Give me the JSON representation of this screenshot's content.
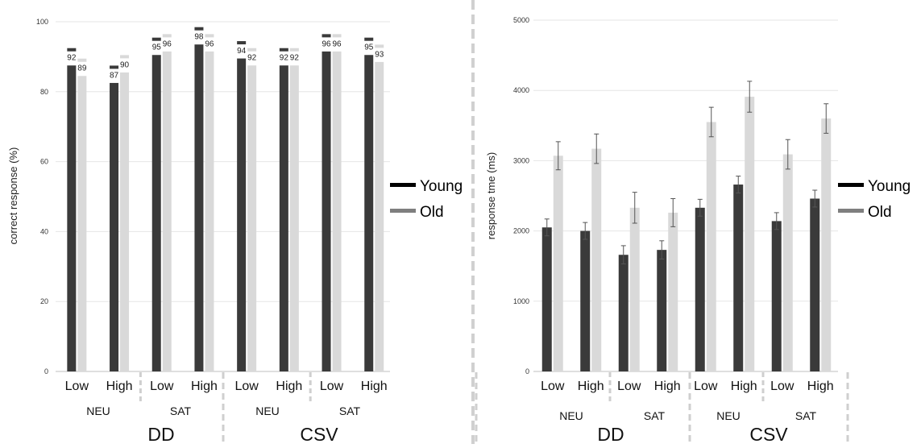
{
  "colors": {
    "young": "#3a3a3a",
    "old": "#d9d9d9",
    "grid": "#e6e6e6",
    "divider": "#cfcfcf",
    "legend_young": "#000000",
    "legend_old": "#7f7f7f"
  },
  "legend": {
    "young": "Young",
    "old": "Old"
  },
  "chart_data": [
    {
      "type": "bar",
      "ylabel": "correct response (%)",
      "ylim": [
        0,
        100
      ],
      "yticks": [
        0,
        20,
        40,
        60,
        80,
        100
      ],
      "grid": true,
      "legend_position": "right",
      "categories": [
        "Low",
        "High",
        "Low",
        "High",
        "Low",
        "High",
        "Low",
        "High"
      ],
      "group_labels": [
        "NEU",
        "SAT",
        "NEU",
        "SAT"
      ],
      "supergroup_labels": [
        "DD",
        "CSV"
      ],
      "series": [
        {
          "name": "Young",
          "values": [
            92,
            87,
            95,
            98,
            94,
            92,
            96,
            95
          ],
          "bar_values": [
            87.5,
            82.5,
            90.5,
            93.5,
            89.5,
            87.5,
            91.5,
            90.5
          ]
        },
        {
          "name": "Old",
          "values": [
            89,
            90,
            96,
            96,
            92,
            92,
            96,
            93
          ],
          "bar_values": [
            84.5,
            85.5,
            91.5,
            91.5,
            87.5,
            87.5,
            91.5,
            88.5
          ]
        }
      ]
    },
    {
      "type": "bar",
      "ylabel": "response tme (ms)",
      "ylim": [
        0,
        5000
      ],
      "yticks": [
        0,
        1000,
        2000,
        3000,
        4000,
        5000
      ],
      "grid": true,
      "legend_position": "right",
      "categories": [
        "Low",
        "High",
        "Low",
        "High",
        "Low",
        "High",
        "Low",
        "High"
      ],
      "group_labels": [
        "NEU",
        "SAT",
        "NEU",
        "SAT"
      ],
      "supergroup_labels": [
        "DD",
        "CSV"
      ],
      "series": [
        {
          "name": "Young",
          "values": [
            2050,
            2000,
            1660,
            1730,
            2330,
            2660,
            2140,
            2460
          ],
          "errors": [
            120,
            120,
            130,
            130,
            120,
            120,
            120,
            120
          ]
        },
        {
          "name": "Old",
          "values": [
            3070,
            3170,
            2330,
            2260,
            3550,
            3910,
            3090,
            3600
          ],
          "errors": [
            200,
            210,
            220,
            200,
            210,
            220,
            210,
            210
          ]
        }
      ]
    }
  ]
}
